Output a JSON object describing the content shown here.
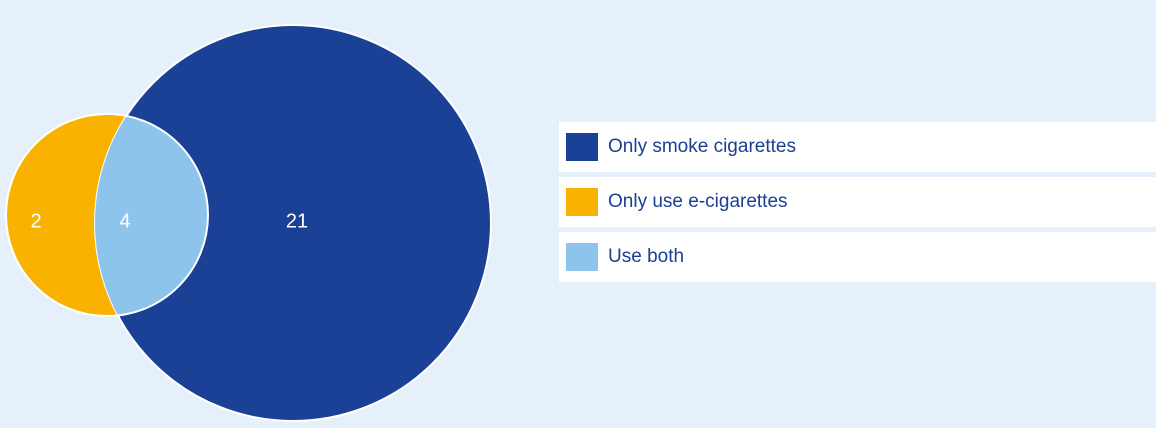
{
  "colors": {
    "background": "#e6f0fa",
    "cigarettes_only": "#1a4195",
    "ecig_only": "#f9b200",
    "both": "#8dc4eb",
    "legend_text": "#1a3f93"
  },
  "venn": {
    "large_circle_value": "21",
    "small_circle_only_value": "2",
    "overlap_value": "4"
  },
  "legend": {
    "items": [
      {
        "label": "Only smoke cigarettes",
        "color": "#1a4195"
      },
      {
        "label": "Only use e-cigarettes",
        "color": "#f9b200"
      },
      {
        "label": "Use both",
        "color": "#8dc4eb"
      }
    ]
  }
}
